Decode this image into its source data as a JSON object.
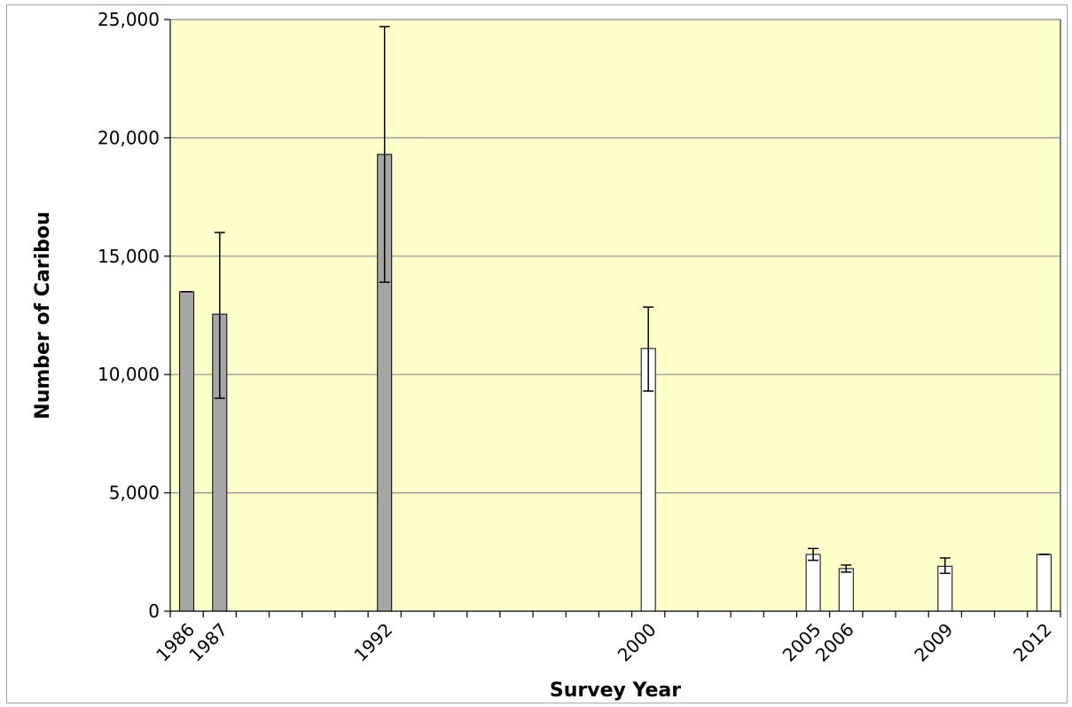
{
  "chart_data": {
    "type": "bar",
    "title": "",
    "xlabel": "Survey Year",
    "ylabel": "Number of Caribou",
    "ylim": [
      0,
      25000
    ],
    "xlim": [
      1985.5,
      2012.5
    ],
    "y_ticks": [
      "0",
      "5,000",
      "10,000",
      "15,000",
      "20,000",
      "25,000"
    ],
    "y_tick_values": [
      0,
      5000,
      10000,
      15000,
      20000,
      25000
    ],
    "grid": true,
    "plot_background": "#ffffcc",
    "bars": [
      {
        "year": 1986,
        "label": "1986",
        "value": 13500,
        "error_low": 13500,
        "error_high": 13500,
        "fill": "#a6a6a6"
      },
      {
        "year": 1987,
        "label": "1987",
        "value": 12550,
        "error_low": 9000,
        "error_high": 16000,
        "fill": "#a6a6a6"
      },
      {
        "year": 1992,
        "label": "1992",
        "value": 19300,
        "error_low": 13900,
        "error_high": 24700,
        "fill": "#a6a6a6"
      },
      {
        "year": 2000,
        "label": "2000",
        "value": 11100,
        "error_low": 9300,
        "error_high": 12850,
        "fill": "#ffffff"
      },
      {
        "year": 2005,
        "label": "2005",
        "value": 2400,
        "error_low": 2150,
        "error_high": 2650,
        "fill": "#ffffff"
      },
      {
        "year": 2006,
        "label": "2006",
        "value": 1800,
        "error_low": 1650,
        "error_high": 1950,
        "fill": "#ffffff"
      },
      {
        "year": 2009,
        "label": "2009",
        "value": 1900,
        "error_low": 1600,
        "error_high": 2250,
        "fill": "#ffffff"
      },
      {
        "year": 2012,
        "label": "2012",
        "value": 2400,
        "error_low": 2400,
        "error_high": 2400,
        "fill": "#ffffff"
      }
    ]
  }
}
